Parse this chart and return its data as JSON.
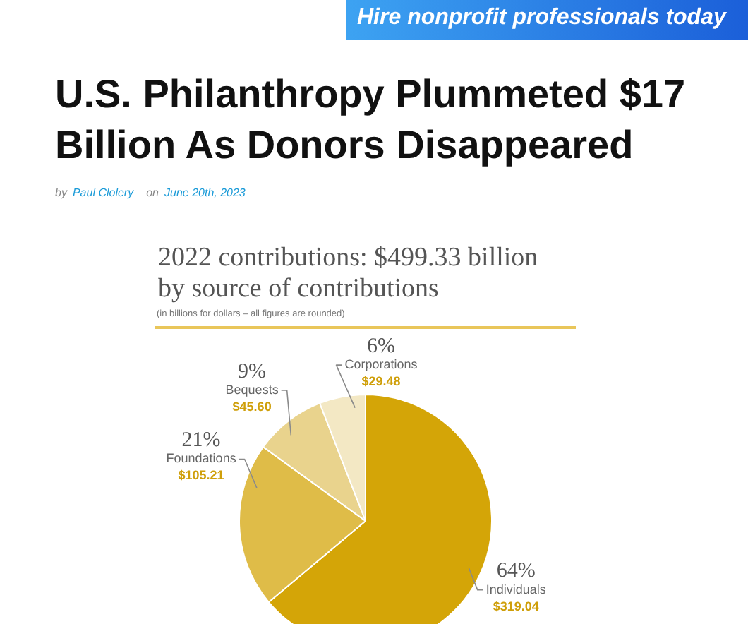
{
  "chart_data": {
    "type": "pie",
    "title": "U.S. Philanthropy Plummeted $17 Billion As Donors Disappeared",
    "subtitle": "2022 contributions: $499.33 billion by source of contributions",
    "categories": [
      "Individuals",
      "Foundations",
      "Bequests",
      "Corporations"
    ],
    "values": [
      319.04,
      105.21,
      45.6,
      29.48
    ],
    "colors": [
      "#d4a507",
      "#dfbc48",
      "#e9d38d",
      "#f3e8c4"
    ],
    "value_labels": [
      "$319.04",
      "$105.21",
      "$45.60",
      "$29.48"
    ],
    "annotations": [
      "Hire nonprofit professionals today",
      "by",
      "Paul Clolery",
      "on",
      "June 20th, 2023",
      "(in billions for dollars – all figures are rounded)",
      {
        "text": "64%",
        "x": "Individuals"
      },
      {
        "text": "21%",
        "x": "Foundations"
      },
      {
        "text": "9%",
        "x": "Bequests"
      },
      {
        "text": "6%",
        "x": "Corporations"
      }
    ]
  }
}
